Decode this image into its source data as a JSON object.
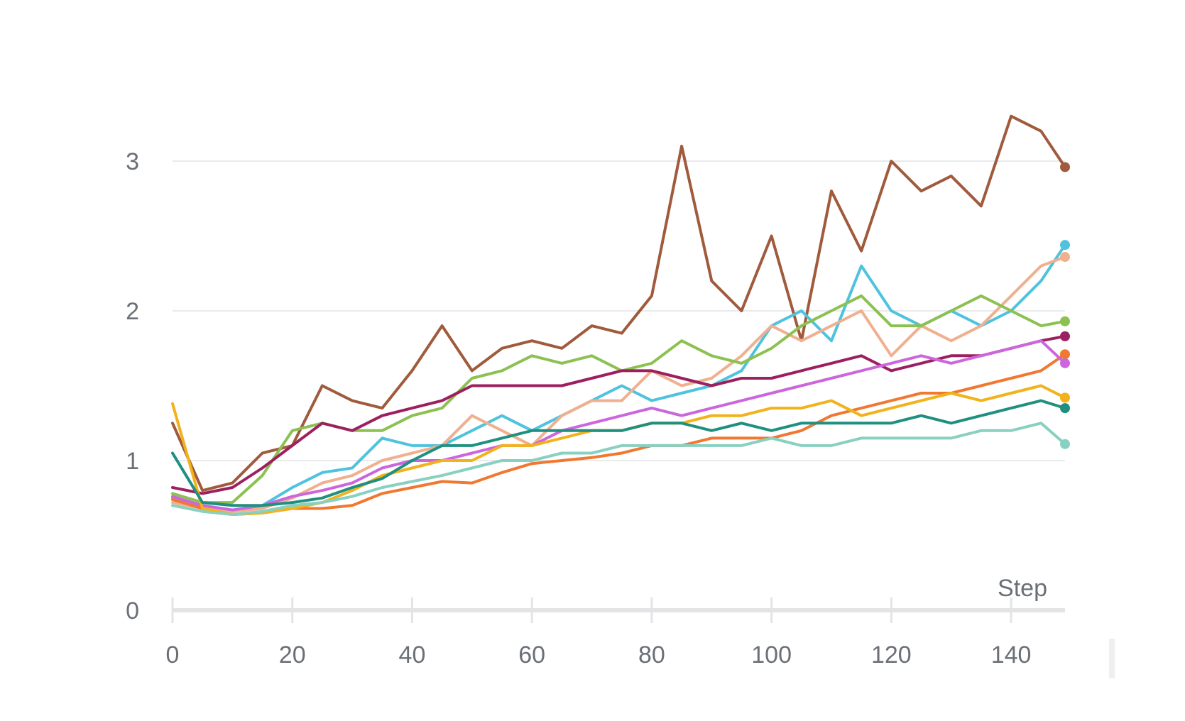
{
  "chart_data": {
    "type": "line",
    "title": "",
    "xlabel": "Step",
    "ylabel": "",
    "xlim": [
      0,
      149
    ],
    "ylim": [
      0,
      3.7
    ],
    "x_ticks": [
      0,
      20,
      40,
      60,
      80,
      100,
      120,
      140
    ],
    "y_ticks": [
      0,
      1,
      2,
      3
    ],
    "grid": "horizontal",
    "legend": "none",
    "x": [
      0,
      5,
      10,
      15,
      20,
      25,
      30,
      35,
      40,
      45,
      50,
      55,
      60,
      65,
      70,
      75,
      80,
      85,
      90,
      95,
      100,
      105,
      110,
      115,
      120,
      125,
      130,
      135,
      140,
      145,
      149
    ],
    "series": [
      {
        "color": "#a05a3c",
        "values": [
          1.25,
          0.8,
          0.85,
          1.05,
          1.1,
          1.5,
          1.4,
          1.35,
          1.6,
          1.9,
          1.6,
          1.75,
          1.8,
          1.75,
          1.9,
          1.85,
          2.1,
          3.1,
          2.2,
          2.0,
          2.5,
          1.8,
          2.8,
          2.4,
          3.0,
          2.8,
          2.9,
          2.7,
          3.3,
          3.2,
          2.96
        ]
      },
      {
        "color": "#4fc3dd",
        "values": [
          0.75,
          0.68,
          0.66,
          0.7,
          0.82,
          0.92,
          0.95,
          1.15,
          1.1,
          1.1,
          1.2,
          1.3,
          1.2,
          1.3,
          1.4,
          1.5,
          1.4,
          1.45,
          1.5,
          1.6,
          1.9,
          2.0,
          1.8,
          2.3,
          2.0,
          1.9,
          2.0,
          1.9,
          2.0,
          2.2,
          2.44
        ]
      },
      {
        "color": "#f0b090",
        "values": [
          0.72,
          0.68,
          0.66,
          0.68,
          0.75,
          0.85,
          0.9,
          1.0,
          1.05,
          1.1,
          1.3,
          1.2,
          1.1,
          1.3,
          1.4,
          1.4,
          1.6,
          1.5,
          1.55,
          1.7,
          1.9,
          1.8,
          1.9,
          2.0,
          1.7,
          1.9,
          1.8,
          1.9,
          2.1,
          2.3,
          2.36
        ]
      },
      {
        "color": "#8cc152",
        "values": [
          0.78,
          0.72,
          0.72,
          0.9,
          1.2,
          1.25,
          1.2,
          1.2,
          1.3,
          1.35,
          1.55,
          1.6,
          1.7,
          1.65,
          1.7,
          1.6,
          1.65,
          1.8,
          1.7,
          1.65,
          1.75,
          1.9,
          2.0,
          2.1,
          1.9,
          1.9,
          2.0,
          2.1,
          2.0,
          1.9,
          1.93
        ]
      },
      {
        "color": "#9c2060",
        "values": [
          0.82,
          0.78,
          0.82,
          0.95,
          1.1,
          1.25,
          1.2,
          1.3,
          1.35,
          1.4,
          1.5,
          1.5,
          1.5,
          1.5,
          1.55,
          1.6,
          1.6,
          1.55,
          1.5,
          1.55,
          1.55,
          1.6,
          1.65,
          1.7,
          1.6,
          1.65,
          1.7,
          1.7,
          1.75,
          1.8,
          1.83
        ]
      },
      {
        "color": "#f07830",
        "values": [
          0.74,
          0.68,
          0.64,
          0.65,
          0.68,
          0.68,
          0.7,
          0.78,
          0.82,
          0.86,
          0.85,
          0.92,
          0.98,
          1.0,
          1.02,
          1.05,
          1.1,
          1.1,
          1.15,
          1.15,
          1.15,
          1.2,
          1.3,
          1.35,
          1.4,
          1.45,
          1.45,
          1.5,
          1.55,
          1.6,
          1.71
        ]
      },
      {
        "color": "#cc66dd",
        "values": [
          0.76,
          0.7,
          0.67,
          0.7,
          0.76,
          0.8,
          0.85,
          0.95,
          1.0,
          1.0,
          1.05,
          1.1,
          1.1,
          1.2,
          1.25,
          1.3,
          1.35,
          1.3,
          1.35,
          1.4,
          1.45,
          1.5,
          1.55,
          1.6,
          1.65,
          1.7,
          1.65,
          1.7,
          1.75,
          1.8,
          1.65
        ]
      },
      {
        "color": "#f2b21c",
        "values": [
          1.38,
          0.68,
          0.64,
          0.65,
          0.68,
          0.72,
          0.8,
          0.9,
          0.95,
          1.0,
          1.0,
          1.1,
          1.1,
          1.15,
          1.2,
          1.2,
          1.25,
          1.25,
          1.3,
          1.3,
          1.35,
          1.35,
          1.4,
          1.3,
          1.35,
          1.4,
          1.45,
          1.4,
          1.45,
          1.5,
          1.42
        ]
      },
      {
        "color": "#1f9080",
        "values": [
          1.05,
          0.72,
          0.7,
          0.7,
          0.72,
          0.75,
          0.82,
          0.88,
          1.0,
          1.1,
          1.1,
          1.15,
          1.2,
          1.2,
          1.2,
          1.2,
          1.25,
          1.25,
          1.2,
          1.25,
          1.2,
          1.25,
          1.25,
          1.25,
          1.25,
          1.3,
          1.25,
          1.3,
          1.35,
          1.4,
          1.35
        ]
      },
      {
        "color": "#88d0c0",
        "values": [
          0.7,
          0.66,
          0.64,
          0.66,
          0.7,
          0.72,
          0.76,
          0.82,
          0.86,
          0.9,
          0.95,
          1.0,
          1.0,
          1.05,
          1.05,
          1.1,
          1.1,
          1.1,
          1.1,
          1.1,
          1.15,
          1.1,
          1.1,
          1.15,
          1.15,
          1.15,
          1.15,
          1.2,
          1.2,
          1.25,
          1.11
        ]
      }
    ]
  }
}
